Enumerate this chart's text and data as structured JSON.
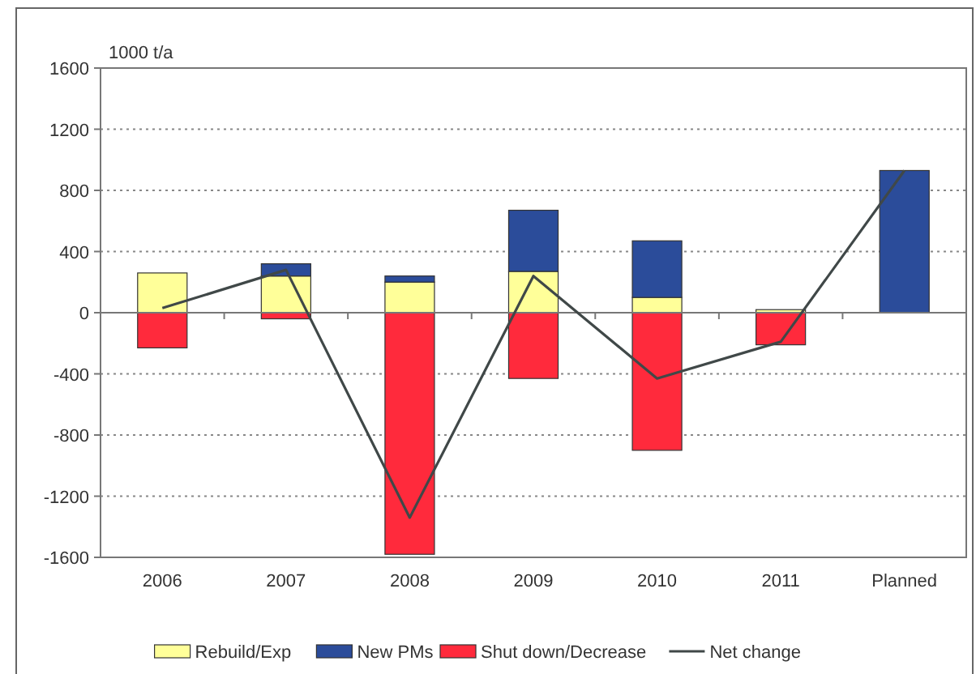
{
  "chart_data": {
    "type": "bar",
    "stacked": true,
    "ylabel": "1000 t/a",
    "categories": [
      "2006",
      "2007",
      "2008",
      "2009",
      "2010",
      "2011",
      "Planned"
    ],
    "series": [
      {
        "name": "Rebuild/Exp",
        "color": "#ffff99",
        "values": [
          260,
          240,
          200,
          270,
          100,
          20,
          0
        ]
      },
      {
        "name": "New PMs",
        "color": "#2b4c9a",
        "values": [
          0,
          80,
          40,
          400,
          370,
          0,
          930
        ]
      },
      {
        "name": "Shut down/Decrease",
        "color": "#ff2a3c",
        "values": [
          -230,
          -40,
          -1580,
          -430,
          -900,
          -210,
          0
        ]
      },
      {
        "name": "Net change",
        "type": "line",
        "color": "#404848",
        "values": [
          30,
          280,
          -1340,
          240,
          -430,
          -190,
          930
        ]
      }
    ],
    "ylim": [
      -1600,
      1600
    ],
    "yticks": [
      -1600,
      -1200,
      -800,
      -400,
      0,
      400,
      800,
      1200,
      1600
    ],
    "grid": "y",
    "legend": "bottom",
    "marker": "none",
    "line_style": "solid"
  }
}
